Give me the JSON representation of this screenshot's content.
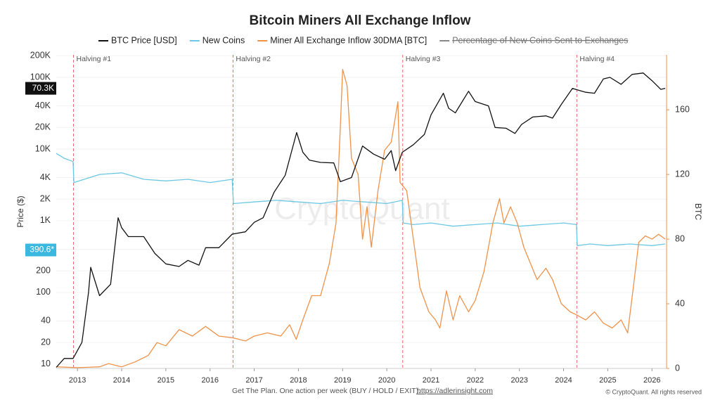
{
  "chart_data": {
    "type": "line",
    "title": "Bitcoin Miners All Exchange Inflow",
    "y_label": "Price ($)",
    "y2_label": "BTC",
    "watermark": "CryptoQuant",
    "footer": "Get The Plan. One action per week (BUY / HOLD / EXIT).",
    "footer_link": "https://adlerinsight.com",
    "copyright": "© CryptoQuant. All rights reserved",
    "log_y": true,
    "xlim": [
      2012.52,
      2026.33
    ],
    "xticks": [
      2013,
      2014,
      2015,
      2016,
      2017,
      2018,
      2019,
      2020,
      2021,
      2022,
      2023,
      2024,
      2025,
      2026
    ],
    "ylim": [
      8.7,
      206000
    ],
    "yticks": [
      10,
      20,
      40,
      100,
      200,
      400,
      {
        "value": 1000,
        "label": "1K"
      },
      {
        "value": 2000,
        "label": "2K"
      },
      {
        "value": 4000,
        "label": "4K"
      },
      {
        "value": 10000,
        "label": "10K"
      },
      {
        "value": 20000,
        "label": "20K"
      },
      {
        "value": 40000,
        "label": "40K"
      },
      {
        "value": 100000,
        "label": "100K"
      },
      {
        "value": 200000,
        "label": "200K"
      }
    ],
    "y2lim": [
      0,
      194
    ],
    "y2ticks": [
      0,
      40,
      80,
      120,
      160
    ],
    "annotations": [
      {
        "x": 2012.91,
        "label": "Halving #1"
      },
      {
        "x": 2016.52,
        "label": "Halving #2"
      },
      {
        "x": 2020.36,
        "label": "Halving #3"
      },
      {
        "x": 2024.3,
        "label": "Halving #4"
      }
    ],
    "last_value_tags": [
      {
        "value": 70300,
        "label": "70.3K",
        "color": "#111111"
      },
      {
        "value": 390.6,
        "label": "390.6*",
        "color": "#3bb8e0"
      }
    ],
    "hidden_series": [
      {
        "name": "Percentage of New Coins Sent to Exchanges",
        "color": "#888888"
      }
    ],
    "series": [
      {
        "name": "BTC Price [USD]",
        "color": "#111111",
        "axis": "y",
        "x": [
          2012.52,
          2012.7,
          2012.9,
          2013.1,
          2013.25,
          2013.3,
          2013.5,
          2013.75,
          2013.92,
          2014.0,
          2014.15,
          2014.4,
          2014.5,
          2014.75,
          2015.0,
          2015.3,
          2015.5,
          2015.75,
          2015.9,
          2016.2,
          2016.5,
          2016.8,
          2017.0,
          2017.2,
          2017.45,
          2017.7,
          2017.96,
          2018.1,
          2018.25,
          2018.5,
          2018.8,
          2018.95,
          2019.2,
          2019.45,
          2019.7,
          2019.95,
          2020.1,
          2020.2,
          2020.35,
          2020.6,
          2020.85,
          2021.0,
          2021.28,
          2021.4,
          2021.55,
          2021.85,
          2022.0,
          2022.3,
          2022.45,
          2022.7,
          2022.9,
          2023.05,
          2023.3,
          2023.6,
          2023.75,
          2023.95,
          2024.2,
          2024.5,
          2024.7,
          2024.9,
          2025.05,
          2025.3,
          2025.55,
          2025.8,
          2026.0,
          2026.2,
          2026.3
        ],
        "values": [
          9,
          12,
          12,
          20,
          100,
          224,
          90,
          130,
          1100,
          800,
          600,
          600,
          600,
          350,
          250,
          230,
          280,
          240,
          420,
          420,
          650,
          700,
          950,
          1100,
          2500,
          4300,
          17000,
          9000,
          7000,
          6500,
          6400,
          3500,
          4000,
          11000,
          8500,
          7200,
          9500,
          5000,
          9000,
          11500,
          16000,
          30000,
          60000,
          37000,
          32000,
          64000,
          46000,
          40000,
          20000,
          19500,
          16500,
          22000,
          28000,
          29000,
          27000,
          42000,
          70000,
          62000,
          60000,
          95000,
          100000,
          80000,
          110000,
          115000,
          90000,
          68000,
          70300
        ]
      },
      {
        "name": "New Coins",
        "color": "#6cc8e4",
        "axis": "y2",
        "x": [
          2012.52,
          2012.7,
          2012.9,
          2012.92,
          2013.5,
          2014.0,
          2014.5,
          2015.0,
          2015.5,
          2016.0,
          2016.5,
          2016.53,
          2017.0,
          2017.5,
          2018.0,
          2018.5,
          2019.0,
          2019.5,
          2020.0,
          2020.35,
          2020.37,
          2020.6,
          2021.0,
          2021.5,
          2022.0,
          2022.5,
          2023.0,
          2023.5,
          2024.0,
          2024.29,
          2024.31,
          2024.6,
          2025.0,
          2025.5,
          2026.0,
          2026.3
        ],
        "values": [
          133,
          130,
          128,
          115,
          120,
          121,
          117,
          116,
          117,
          115,
          117,
          102,
          103,
          104,
          103,
          102,
          104,
          103,
          102,
          104,
          90,
          89,
          90,
          88,
          89,
          90,
          88,
          89,
          90,
          89,
          76,
          77,
          76,
          77,
          76,
          77
        ]
      },
      {
        "name": "Miner All Exchange Inflow 30DMA [BTC]",
        "color": "#f0924a",
        "axis": "y2",
        "x": [
          2012.52,
          2013.0,
          2013.5,
          2013.7,
          2014.0,
          2014.3,
          2014.6,
          2014.8,
          2015.0,
          2015.3,
          2015.6,
          2015.9,
          2016.2,
          2016.5,
          2016.8,
          2017.0,
          2017.3,
          2017.6,
          2017.8,
          2017.95,
          2018.1,
          2018.3,
          2018.5,
          2018.7,
          2018.85,
          2018.95,
          2019.0,
          2019.1,
          2019.2,
          2019.35,
          2019.45,
          2019.55,
          2019.65,
          2019.8,
          2019.95,
          2020.1,
          2020.25,
          2020.3,
          2020.45,
          2020.6,
          2020.75,
          2020.95,
          2021.1,
          2021.2,
          2021.35,
          2021.5,
          2021.65,
          2021.85,
          2022.0,
          2022.2,
          2022.4,
          2022.55,
          2022.65,
          2022.8,
          2022.95,
          2023.1,
          2023.25,
          2023.4,
          2023.6,
          2023.75,
          2023.95,
          2024.15,
          2024.3,
          2024.5,
          2024.7,
          2024.9,
          2025.1,
          2025.3,
          2025.45,
          2025.6,
          2025.7,
          2025.85,
          2026.0,
          2026.15,
          2026.3
        ],
        "values": [
          1,
          0.5,
          1,
          3,
          1,
          4,
          8,
          16,
          14,
          24,
          20,
          26,
          20,
          19,
          17,
          20,
          22,
          20,
          27,
          18,
          30,
          45,
          45,
          65,
          90,
          150,
          185,
          175,
          130,
          120,
          80,
          100,
          75,
          110,
          135,
          140,
          165,
          115,
          110,
          80,
          50,
          35,
          30,
          25,
          48,
          30,
          45,
          35,
          42,
          60,
          90,
          105,
          90,
          100,
          90,
          75,
          65,
          55,
          62,
          55,
          40,
          35,
          33,
          30,
          35,
          28,
          25,
          30,
          22,
          55,
          78,
          82,
          80,
          83,
          80
        ]
      }
    ]
  }
}
